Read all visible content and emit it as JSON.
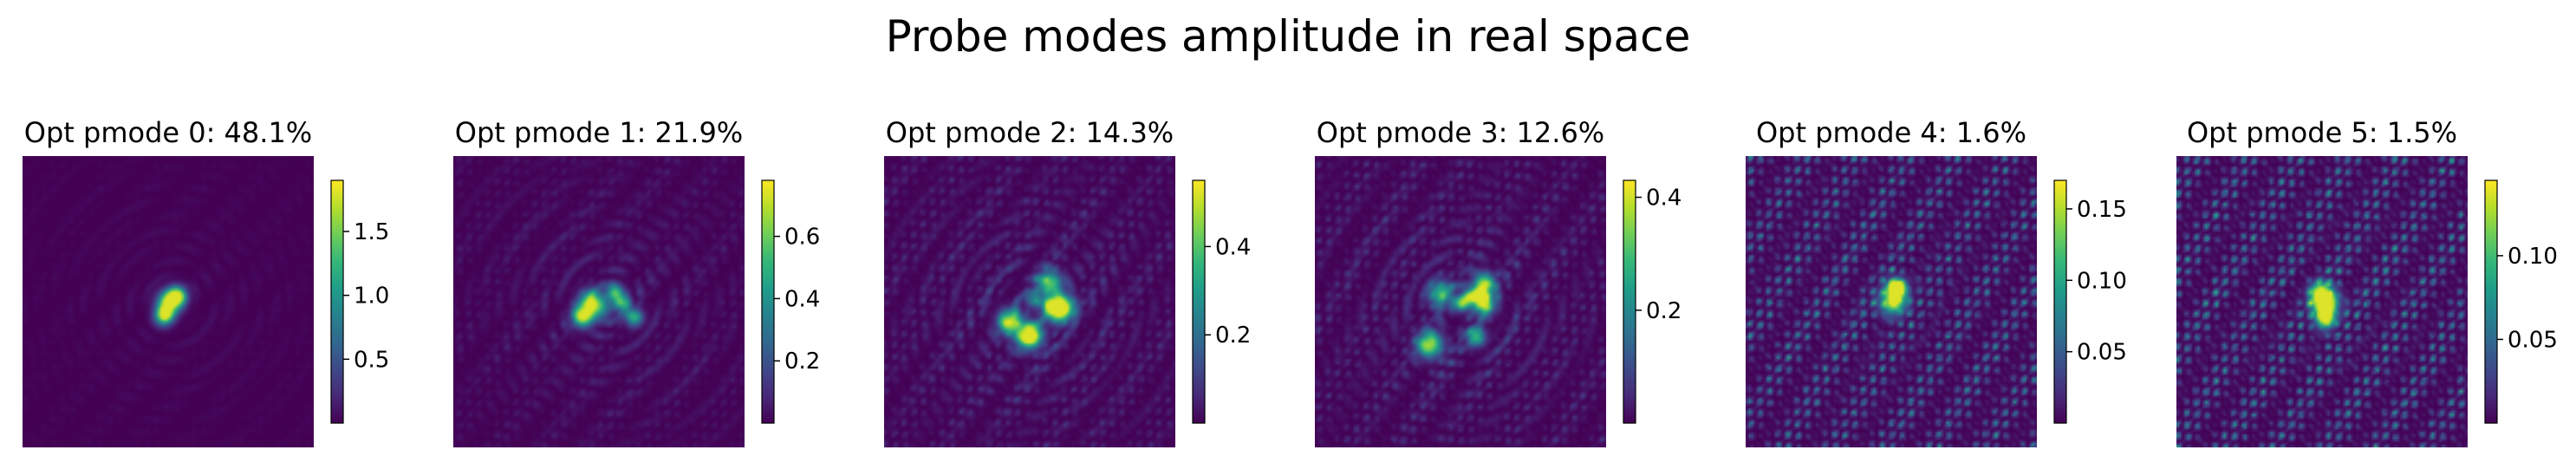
{
  "figure": {
    "suptitle": "Probe modes amplitude in real space"
  },
  "colors": {
    "viridis": [
      "#440154",
      "#482878",
      "#3e4989",
      "#31688e",
      "#26828e",
      "#1f9e89",
      "#35b779",
      "#6ece58",
      "#b5de2b",
      "#fde725"
    ],
    "text": "#000000",
    "background": "#ffffff"
  },
  "chart_data": [
    {
      "type": "heatmap",
      "title": "Opt pmode 0: 48.1%",
      "mode": 0,
      "percent": 48.1,
      "vmin": 0.0,
      "vmax": 1.9,
      "colorbar_ticks": [
        0.5,
        1.0,
        1.5
      ],
      "colorbar_tick_labels": [
        "0.5",
        "1.0",
        "1.5"
      ],
      "pattern": {
        "peak": [
          0.51,
          0.5
        ],
        "spread": 0.045,
        "blobs": 3,
        "speckle": 0.02,
        "halo": 0.12
      }
    },
    {
      "type": "heatmap",
      "title": "Opt pmode 1: 21.9%",
      "mode": 1,
      "percent": 21.9,
      "vmin": 0.0,
      "vmax": 0.78,
      "colorbar_ticks": [
        0.2,
        0.4,
        0.6
      ],
      "colorbar_tick_labels": [
        "0.2",
        "0.4",
        "0.6"
      ],
      "pattern": {
        "peak": [
          0.53,
          0.5
        ],
        "spread": 0.09,
        "blobs": 6,
        "speckle": 0.08,
        "halo": 0.35
      }
    },
    {
      "type": "heatmap",
      "title": "Opt pmode 2: 14.3%",
      "mode": 2,
      "percent": 14.3,
      "vmin": 0.0,
      "vmax": 0.55,
      "colorbar_ticks": [
        0.2,
        0.4
      ],
      "colorbar_tick_labels": [
        "0.2",
        "0.4"
      ],
      "pattern": {
        "peak": [
          0.5,
          0.52
        ],
        "spread": 0.11,
        "blobs": 8,
        "speckle": 0.15,
        "halo": 0.5
      }
    },
    {
      "type": "heatmap",
      "title": "Opt pmode 3: 12.6%",
      "mode": 3,
      "percent": 12.6,
      "vmin": 0.0,
      "vmax": 0.43,
      "colorbar_ticks": [
        0.2,
        0.4
      ],
      "colorbar_tick_labels": [
        "0.2",
        "0.4"
      ],
      "pattern": {
        "peak": [
          0.5,
          0.52
        ],
        "spread": 0.12,
        "blobs": 8,
        "speckle": 0.18,
        "halo": 0.5
      }
    },
    {
      "type": "heatmap",
      "title": "Opt pmode 4: 1.6%",
      "mode": 4,
      "percent": 1.6,
      "vmin": 0.0,
      "vmax": 0.17,
      "colorbar_ticks": [
        0.05,
        0.1,
        0.15
      ],
      "colorbar_tick_labels": [
        "0.05",
        "0.10",
        "0.15"
      ],
      "pattern": {
        "peak": [
          0.5,
          0.5
        ],
        "spread": 0.06,
        "blobs": 4,
        "speckle": 0.6,
        "halo": 0.2
      }
    },
    {
      "type": "heatmap",
      "title": "Opt pmode 5: 1.5%",
      "mode": 5,
      "percent": 1.5,
      "vmin": 0.0,
      "vmax": 0.145,
      "colorbar_ticks": [
        0.05,
        0.1
      ],
      "colorbar_tick_labels": [
        "0.05",
        "0.10"
      ],
      "pattern": {
        "peak": [
          0.52,
          0.5
        ],
        "spread": 0.06,
        "blobs": 4,
        "speckle": 0.65,
        "halo": 0.2
      }
    }
  ]
}
